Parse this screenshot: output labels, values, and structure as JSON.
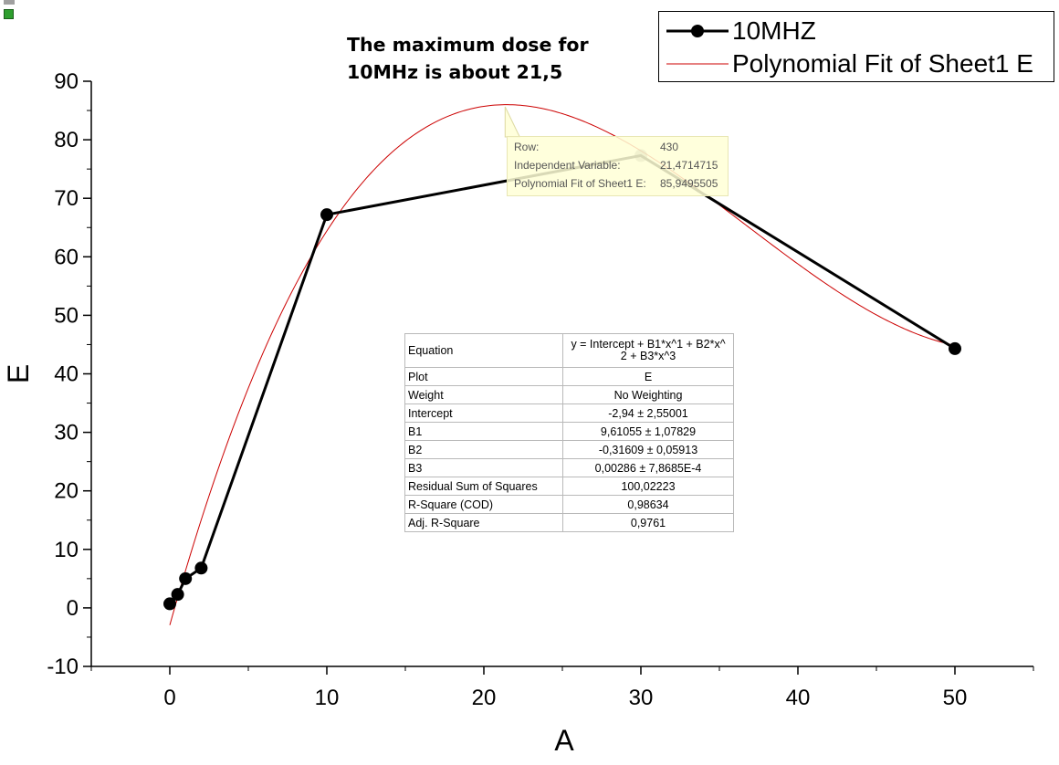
{
  "chart_data": {
    "type": "line",
    "xlabel": "A",
    "ylabel": "E",
    "xlim": [
      -5,
      55
    ],
    "ylim": [
      -10,
      90
    ],
    "xticks": [
      0,
      10,
      20,
      30,
      40,
      50
    ],
    "yticks": [
      -10,
      0,
      10,
      20,
      30,
      40,
      50,
      60,
      70,
      80,
      90
    ],
    "series": [
      {
        "name": "10MHZ",
        "x": [
          0,
          0.5,
          1,
          2,
          10,
          30,
          50
        ],
        "y": [
          0.7,
          2.3,
          5.0,
          6.8,
          67.2,
          77.3,
          44.3
        ],
        "color": "#000000",
        "marker": "circle"
      },
      {
        "name": "Polynomial Fit of Sheet1 E",
        "color": "#cc0000",
        "fit": {
          "intercept": -2.94,
          "b1": 9.61055,
          "b2": -0.31609,
          "b3": 0.00286
        },
        "x_range": [
          0,
          50
        ]
      }
    ],
    "annotation": [
      "The maximum dose for",
      "10MHz is about 21,5"
    ],
    "tooltip": {
      "rows": [
        {
          "label": "Row:",
          "value": "430"
        },
        {
          "label": "Independent Variable:",
          "value": "21,4714715"
        },
        {
          "label": "Polynomial Fit of Sheet1 E:",
          "value": "85,9495505"
        }
      ],
      "point": {
        "x": 21.47,
        "y": 85.95
      }
    },
    "stats_table": {
      "rows": [
        {
          "label": "Equation",
          "value": "y = Intercept + B1*x^1 + B2*x^",
          "value2": "2 + B3*x^3"
        },
        {
          "label": "Plot",
          "value": "E"
        },
        {
          "label": "Weight",
          "value": "No Weighting"
        },
        {
          "label": "Intercept",
          "value": "-2,94 ± 2,55001"
        },
        {
          "label": "B1",
          "value": "9,61055 ± 1,07829"
        },
        {
          "label": "B2",
          "value": "-0,31609 ± 0,05913"
        },
        {
          "label": "B3",
          "value": "0,00286 ± 7,8685E-4"
        },
        {
          "label": "Residual Sum of Squares",
          "value": "100,02223"
        },
        {
          "label": "R-Square (COD)",
          "value": "0,98634"
        },
        {
          "label": "Adj. R-Square",
          "value": "0,9761"
        }
      ]
    }
  }
}
